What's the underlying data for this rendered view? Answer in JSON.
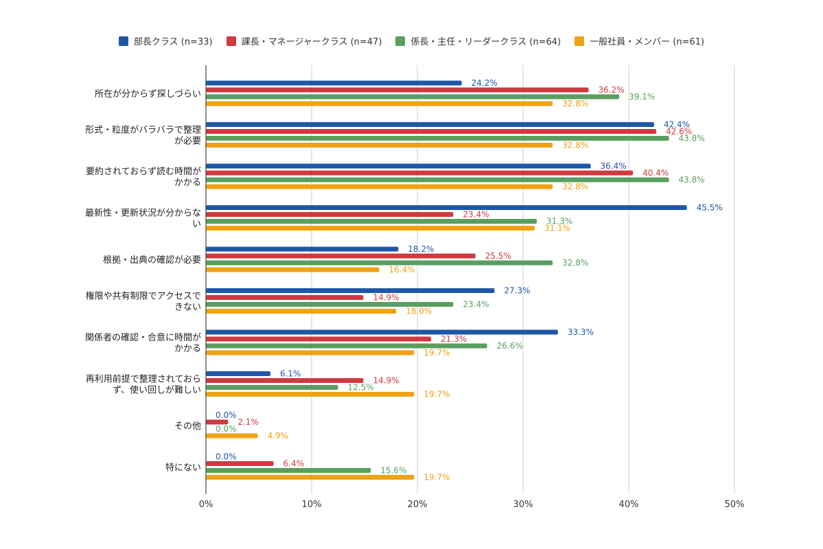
{
  "chart_data": {
    "type": "bar",
    "orientation": "horizontal",
    "categories": [
      [
        "所在が分からず探しづらい"
      ],
      [
        "形式・粒度がバラバラで整理",
        "が必要"
      ],
      [
        "要約されておらず読む時間が",
        "かかる"
      ],
      [
        "最新性・更新状況が分からな",
        "い"
      ],
      [
        "根拠・出典の確認が必要"
      ],
      [
        "権限や共有制限でアクセスで",
        "きない"
      ],
      [
        "関係者の確認・合意に時間が",
        "かかる"
      ],
      [
        "再利用前提で整理されておら",
        "ず、使い回しが難しい"
      ],
      [
        "その他"
      ],
      [
        "特にない"
      ]
    ],
    "series": [
      {
        "name": "部長クラス (n=33)",
        "color": "#1f57a8",
        "values": [
          24.2,
          42.4,
          36.4,
          45.5,
          18.2,
          27.3,
          33.3,
          6.1,
          0.0,
          0.0
        ],
        "labels": [
          "24.2%",
          "42.4%",
          "36.4%",
          "45.5%",
          "18.2%",
          "27.3%",
          "33.3%",
          "6.1%",
          "0.0%",
          "0.0%"
        ]
      },
      {
        "name": "課長・マネージャークラス (n=47)",
        "color": "#d0393f",
        "values": [
          36.2,
          42.6,
          40.4,
          23.4,
          25.5,
          14.9,
          21.3,
          14.9,
          2.1,
          6.4
        ],
        "labels": [
          "36.2%",
          "42.6%",
          "40.4%",
          "23.4%",
          "25.5%",
          "14.9%",
          "21.3%",
          "14.9%",
          "2.1%",
          "6.4%"
        ]
      },
      {
        "name": "係長・主任・リーダークラス (n=64)",
        "color": "#5a9e5f",
        "values": [
          39.1,
          43.8,
          43.8,
          31.3,
          32.8,
          23.4,
          26.6,
          12.5,
          0.0,
          15.6
        ],
        "labels": [
          "39.1%",
          "43.8%",
          "43.8%",
          "31.3%",
          "32.8%",
          "23.4%",
          "26.6%",
          "12.5%",
          "0.0%",
          "15.6%"
        ]
      },
      {
        "name": "一般社員・メンバー (n=61)",
        "color": "#f0a215",
        "values": [
          32.8,
          32.8,
          32.8,
          31.1,
          16.4,
          18.0,
          19.7,
          19.7,
          4.9,
          19.7
        ],
        "labels": [
          "32.8%",
          "32.8%",
          "32.8%",
          "31.1%",
          "16.4%",
          "18.0%",
          "19.7%",
          "19.7%",
          "4.9%",
          "19.7%"
        ]
      }
    ],
    "xlim": [
      0,
      50
    ],
    "xticks": [
      "0%",
      "10%",
      "20%",
      "30%",
      "40%",
      "50%"
    ],
    "grid": true,
    "legend_position": "top"
  }
}
